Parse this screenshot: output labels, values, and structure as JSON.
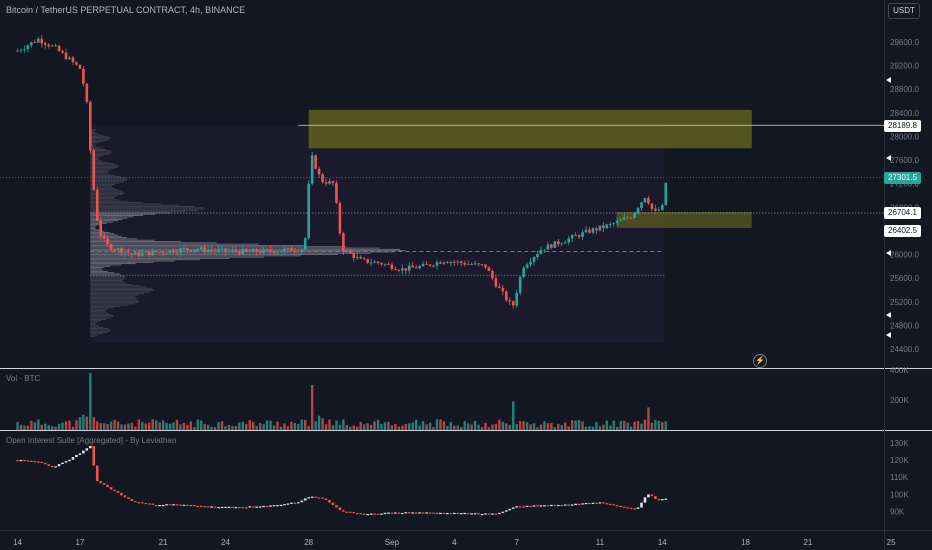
{
  "header": {
    "title": "Bitcoin / TetherUS PERPETUAL CONTRACT, 4h, BINANCE",
    "currency_button": "USDT"
  },
  "panes": {
    "volume_label": "Vol · BTC",
    "oi_label": "Open Interest Suite [Aggregated] - By Leviathan"
  },
  "price_tags": {
    "zone_top": "28189.8",
    "last_price": "27301.5",
    "zone_mid": "26704.1",
    "zone_low": "26402.5"
  },
  "icons": {
    "flash": "lightning-icon",
    "scroll_markers": "triangle-left-icon"
  },
  "colors": {
    "background": "#131722",
    "up": "#26a69a",
    "down": "#ef5350",
    "zone": "#6b6b1e",
    "profile": "#9598a1",
    "poc": "#ef5350"
  },
  "chart_data": [
    {
      "type": "candlestick",
      "title": "Bitcoin / TetherUS PERPETUAL CONTRACT, 4h, BINANCE",
      "x_tick_labels": [
        "14",
        "17",
        "21",
        "24",
        "28",
        "Sep",
        "4",
        "7",
        "11",
        "14",
        "18",
        "21",
        "25"
      ],
      "y_tick_labels": [
        "29600.0",
        "29200.0",
        "28800.0",
        "28400.0",
        "28000.0",
        "27600.0",
        "27200.0",
        "26800.0",
        "26400.0",
        "26000.0",
        "25600.0",
        "25200.0",
        "24800.0",
        "24400.0"
      ],
      "ylim": [
        24200,
        30100
      ],
      "close_path": [
        [
          14,
          29450
        ],
        [
          15,
          29650
        ],
        [
          15.8,
          29500
        ],
        [
          16.5,
          29300
        ],
        [
          17,
          29150
        ],
        [
          17.3,
          28700
        ],
        [
          17.6,
          27300
        ],
        [
          17.9,
          26400
        ],
        [
          18.3,
          26150
        ],
        [
          19.5,
          26000
        ],
        [
          21,
          26050
        ],
        [
          22.5,
          26100
        ],
        [
          24,
          26050
        ],
        [
          26,
          26050
        ],
        [
          27.8,
          26100
        ],
        [
          28.1,
          27700
        ],
        [
          28.6,
          27250
        ],
        [
          29.2,
          27200
        ],
        [
          29.6,
          26100
        ],
        [
          30.5,
          25900
        ],
        [
          31.5,
          25850
        ],
        [
          32.5,
          25750
        ],
        [
          33.5,
          25800
        ],
        [
          34.5,
          25900
        ],
        [
          35.5,
          25850
        ],
        [
          36.5,
          25800
        ],
        [
          37,
          25500
        ],
        [
          37.8,
          25100
        ],
        [
          38.3,
          25800
        ],
        [
          39.2,
          26100
        ],
        [
          40,
          26200
        ],
        [
          41.5,
          26400
        ],
        [
          42.5,
          26500
        ],
        [
          43.5,
          26650
        ],
        [
          44.2,
          27000
        ],
        [
          44.6,
          26700
        ],
        [
          45,
          26800
        ],
        [
          45.2,
          27300
        ]
      ],
      "annotations": {
        "resistance_zone": [
          27800,
          28450
        ],
        "support_zone": [
          26450,
          26720
        ],
        "zone_top_line": 28189.8,
        "last_price_line": 27301.5,
        "value_area_high": 26704.1,
        "value_area_low": 25650,
        "point_of_control": 26050
      },
      "volume_profile": {
        "visible": true,
        "side": "left"
      },
      "grid": false
    },
    {
      "type": "bar",
      "title": "Vol · BTC",
      "y_tick_labels": [
        "400K",
        "200K"
      ],
      "ylim": [
        0,
        420000
      ],
      "values_note": "",
      "spikes": [
        [
          17.5,
          380000
        ],
        [
          28.1,
          300000
        ],
        [
          37.9,
          190000
        ],
        [
          44.3,
          150000
        ]
      ],
      "baseline": 60000
    },
    {
      "type": "line",
      "title": "Open Interest Suite [Aggregated] - By Leviathan",
      "y_tick_labels": [
        "130K",
        "120K",
        "110K",
        "100K",
        "90K"
      ],
      "ylim": [
        83000,
        135000
      ],
      "path": [
        [
          14,
          120000
        ],
        [
          15,
          119000
        ],
        [
          15.7,
          116000
        ],
        [
          16.3,
          119000
        ],
        [
          17,
          124000
        ],
        [
          17.5,
          128000
        ],
        [
          17.8,
          108000
        ],
        [
          18.5,
          103000
        ],
        [
          19.5,
          96000
        ],
        [
          20.5,
          94000
        ],
        [
          21.5,
          94000
        ],
        [
          22.5,
          93500
        ],
        [
          23.5,
          92500
        ],
        [
          24.5,
          92500
        ],
        [
          26,
          93000
        ],
        [
          27.5,
          95500
        ],
        [
          28.1,
          99000
        ],
        [
          28.8,
          97000
        ],
        [
          29.6,
          90000
        ],
        [
          30.5,
          88500
        ],
        [
          31.5,
          89000
        ],
        [
          33,
          89500
        ],
        [
          34.5,
          89000
        ],
        [
          36,
          88800
        ],
        [
          37,
          88500
        ],
        [
          38,
          93000
        ],
        [
          39.2,
          93500
        ],
        [
          40.5,
          94000
        ],
        [
          42,
          95500
        ],
        [
          43,
          93000
        ],
        [
          43.8,
          91500
        ],
        [
          44.3,
          100500
        ],
        [
          44.7,
          97000
        ],
        [
          45.2,
          97500
        ]
      ]
    }
  ]
}
